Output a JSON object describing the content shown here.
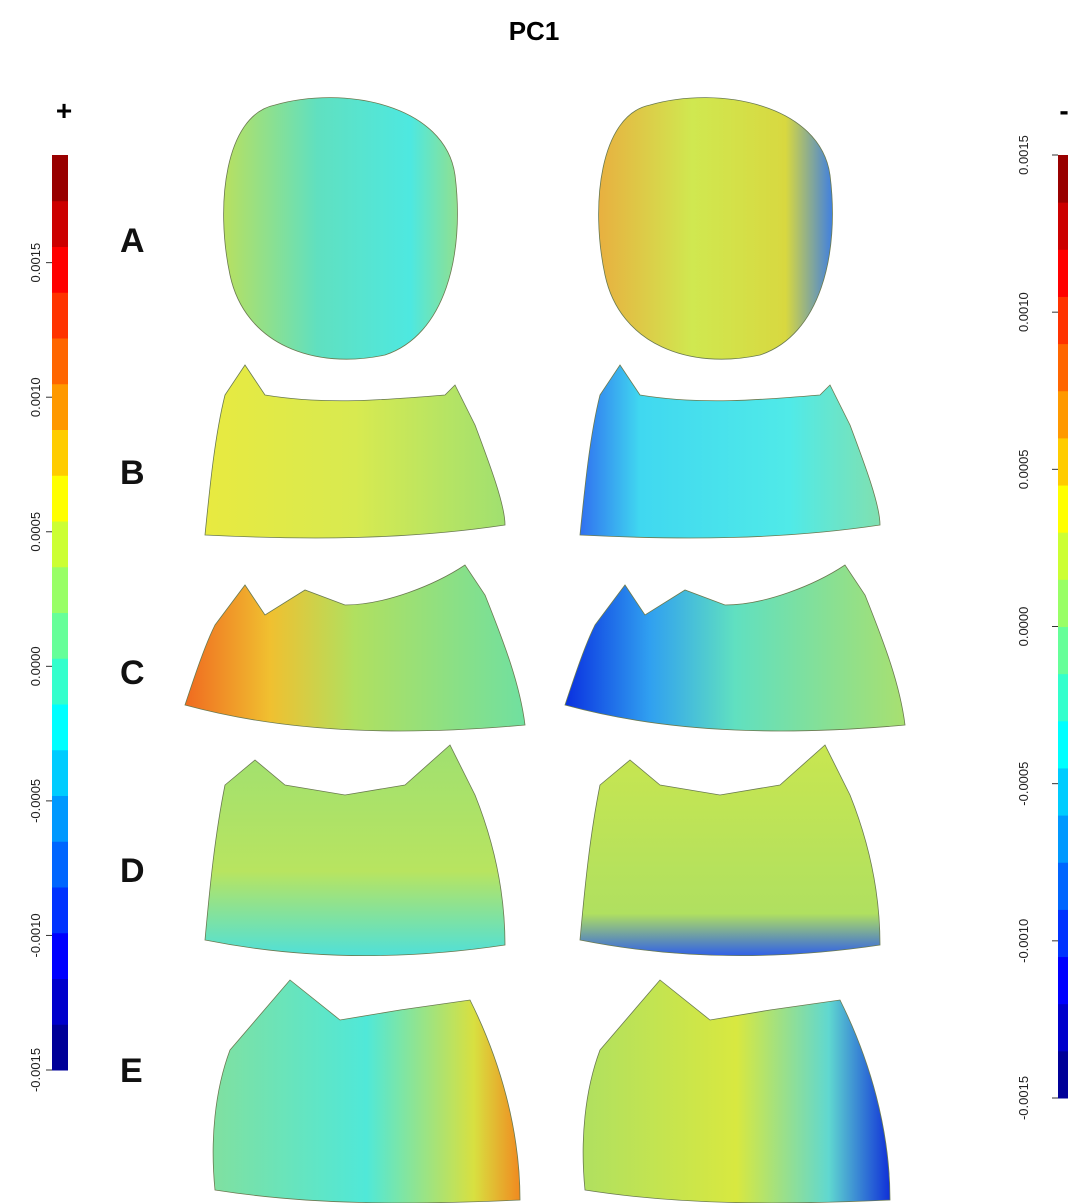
{
  "title": "PC1",
  "row_labels": [
    "A",
    "B",
    "C",
    "D",
    "E"
  ],
  "colorbars": [
    {
      "sign": "+",
      "lim": [
        -0.0015,
        0.0019
      ],
      "ticks": [
        0.0015,
        {
          "value": 0.001,
          "label": "0.0010"
        },
        0.0005,
        {
          "value": 0,
          "label": "0.0000"
        },
        -0.0005,
        {
          "value": -0.001,
          "label": "-0.0010"
        },
        -0.0015
      ]
    },
    {
      "sign": "-",
      "lim": [
        -0.0015,
        0.0015
      ],
      "ticks": [
        0.0015,
        {
          "value": 0.001,
          "label": "0.0010"
        },
        0.0005,
        {
          "value": 0,
          "label": "0.0000"
        },
        -0.0005,
        {
          "value": -0.001,
          "label": "-0.0010"
        },
        -0.0015
      ]
    }
  ]
}
